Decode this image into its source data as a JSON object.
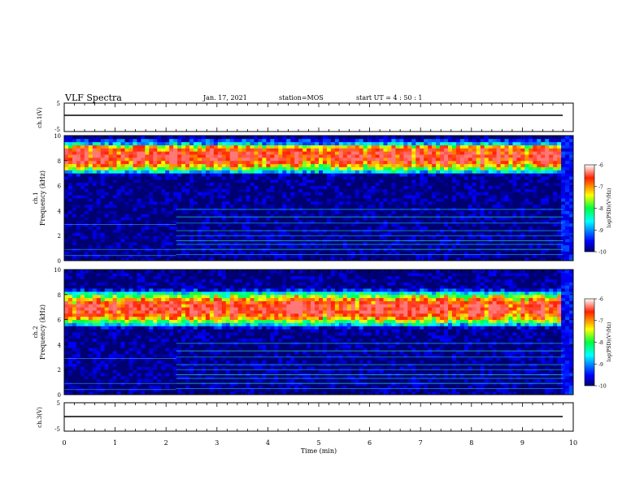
{
  "header": {
    "title": "VLF Spectra",
    "date": "Jan. 17, 2021",
    "station": "station=MOS",
    "start": "start UT =  4 : 50 : 1"
  },
  "chart_data": {
    "type": "heatmap",
    "x_axis": {
      "label": "Time (min)",
      "range": [
        0,
        10
      ],
      "ticks": [
        "0",
        "1",
        "2",
        "3",
        "4",
        "5",
        "6",
        "7",
        "8",
        "9",
        "10"
      ]
    },
    "panels": [
      {
        "id": "ch1-waveform",
        "type": "line",
        "ylabel": "ch.1(V)",
        "ylim": [
          -5,
          5
        ],
        "yticks": [
          "5",
          "-5"
        ],
        "baseline": 0
      },
      {
        "id": "ch1-spectrogram",
        "type": "heatmap",
        "ylabel_channel": "ch.1",
        "ylabel": "Frequency (kHz)",
        "ylim": [
          0,
          10
        ],
        "yticks": [
          "0",
          "2",
          "4",
          "6",
          "8",
          "10"
        ],
        "intense_band_khz": [
          7.5,
          9.2
        ],
        "low_freq_quiet_until_min": 2.2,
        "data_end_min": 9.8,
        "colorbar": {
          "label": "log(PSD)(V²/Hz)",
          "range": [
            -10,
            -6
          ],
          "ticks": [
            "-6",
            "-7",
            "-8",
            "-9",
            "-10"
          ]
        }
      },
      {
        "id": "ch2-spectrogram",
        "type": "heatmap",
        "ylabel_channel": "ch.2",
        "ylabel": "Frequency (kHz)",
        "ylim": [
          0,
          10
        ],
        "yticks": [
          "0",
          "2",
          "4",
          "6",
          "8",
          "10"
        ],
        "intense_band_khz": [
          6,
          7.8
        ],
        "low_freq_quiet_until_min": 2.2,
        "data_end_min": 9.8,
        "colorbar": {
          "label": "log(PSD)(V²/Hz)",
          "range": [
            -10,
            -6
          ],
          "ticks": [
            "-6",
            "-7",
            "-8",
            "-9",
            "-10"
          ]
        }
      },
      {
        "id": "ch3-waveform",
        "type": "line",
        "ylabel": "ch.3(V)",
        "ylim": [
          -5,
          5
        ],
        "yticks": [
          "5",
          "-5"
        ],
        "baseline": 0
      }
    ]
  }
}
